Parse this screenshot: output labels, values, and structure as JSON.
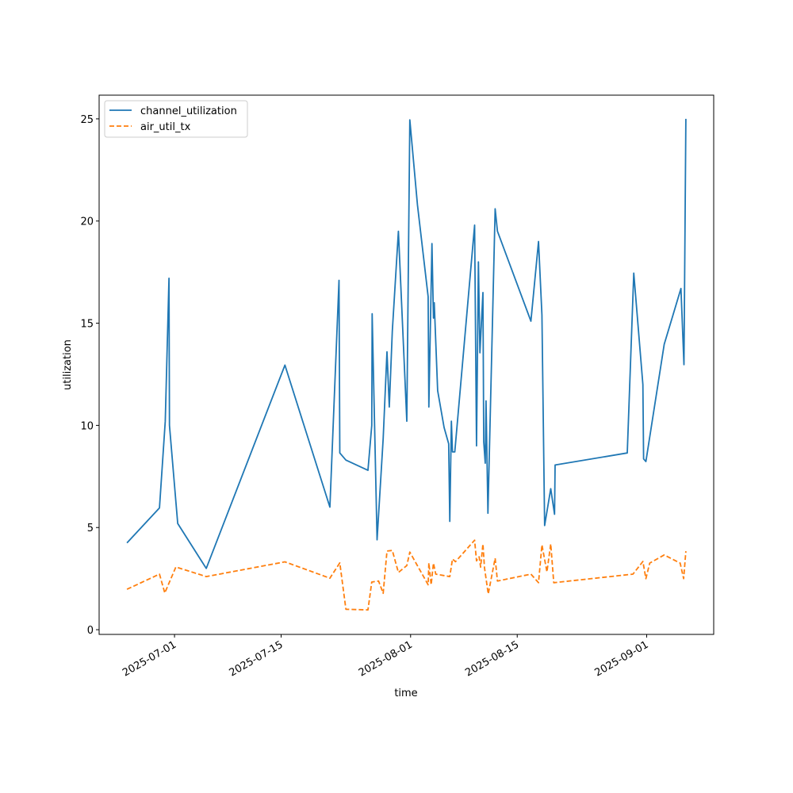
{
  "chart_data": {
    "type": "line",
    "title": "",
    "xlabel": "time",
    "ylabel": "utilization",
    "x_unit": "days since 2025-07-01",
    "x_origin": "2025-07-01",
    "xlim": [
      -9.9,
      70.8
    ],
    "ylim": [
      -0.23,
      26.16
    ],
    "grid": false,
    "legend_position": "top-left",
    "x_ticks": [
      {
        "value": 0,
        "label": "2025-07-01"
      },
      {
        "value": 14,
        "label": "2025-07-15"
      },
      {
        "value": 31,
        "label": "2025-08-01"
      },
      {
        "value": 45,
        "label": "2025-08-15"
      },
      {
        "value": 62,
        "label": "2025-09-01"
      }
    ],
    "y_ticks": [
      {
        "value": 0,
        "label": "0"
      },
      {
        "value": 5,
        "label": "5"
      },
      {
        "value": 10,
        "label": "10"
      },
      {
        "value": 15,
        "label": "15"
      },
      {
        "value": 20,
        "label": "20"
      },
      {
        "value": 25,
        "label": "25"
      }
    ],
    "series": [
      {
        "name": "channel_utilization",
        "color": "#1f77b4",
        "style": "solid",
        "x": [
          -6.25,
          -1.98,
          -1.22,
          -0.73,
          -0.66,
          0.42,
          4.17,
          14.5,
          20.4,
          21.6,
          21.7,
          22.5,
          25.4,
          25.9,
          25.95,
          26.6,
          27.4,
          27.9,
          28.2,
          28.6,
          29.4,
          30.5,
          30.9,
          31.9,
          33.3,
          33.4,
          33.8,
          34.0,
          34.1,
          34.55,
          35.4,
          36.0,
          36.15,
          36.35,
          36.5,
          36.8,
          39.4,
          39.65,
          39.9,
          40.1,
          40.5,
          40.6,
          40.8,
          40.9,
          41.15,
          42.1,
          42.4,
          46.8,
          47.8,
          48.25,
          48.6,
          49.4,
          49.9,
          49.97,
          59.45,
          60.3,
          61.5,
          61.6,
          61.9,
          64.3,
          66.5,
          66.9,
          67.15
        ],
        "values": [
          4.25,
          5.96,
          10.2,
          17.2,
          10.0,
          5.2,
          3.0,
          12.95,
          6.0,
          17.1,
          8.65,
          8.3,
          7.8,
          10.0,
          15.46,
          4.4,
          9.35,
          13.6,
          10.9,
          14.6,
          19.5,
          10.2,
          24.95,
          20.8,
          16.3,
          10.9,
          18.9,
          15.25,
          16.0,
          11.7,
          9.9,
          9.1,
          5.3,
          10.2,
          8.7,
          8.7,
          19.8,
          9.0,
          18.0,
          13.55,
          16.5,
          9.2,
          8.15,
          11.2,
          5.7,
          20.6,
          19.5,
          15.1,
          19.0,
          15.4,
          5.1,
          6.9,
          5.65,
          8.06,
          8.65,
          17.45,
          12.0,
          8.36,
          8.23,
          13.97,
          16.7,
          12.97,
          25.0
        ]
      },
      {
        "name": "air_util_tx",
        "color": "#ff7f0e",
        "style": "dashed",
        "x": [
          -6.25,
          -1.98,
          -1.28,
          0.18,
          4.17,
          14.5,
          20.4,
          21.7,
          22.5,
          25.4,
          25.9,
          26.8,
          27.4,
          27.9,
          28.6,
          29.4,
          30.5,
          30.9,
          33.3,
          33.4,
          33.7,
          34.0,
          34.3,
          36.15,
          36.5,
          36.9,
          39.4,
          39.65,
          40.0,
          40.2,
          40.5,
          40.7,
          41.2,
          42.1,
          42.4,
          46.8,
          47.8,
          48.25,
          48.9,
          49.4,
          49.8,
          60.2,
          61.5,
          61.9,
          62.4,
          64.3,
          66.4,
          66.85,
          67.15
        ],
        "values": [
          1.98,
          2.72,
          1.8,
          3.07,
          2.6,
          3.32,
          2.52,
          3.27,
          1.0,
          0.97,
          2.33,
          2.38,
          1.78,
          3.85,
          3.88,
          2.8,
          3.14,
          3.8,
          2.2,
          3.27,
          2.2,
          3.26,
          2.72,
          2.6,
          3.46,
          3.33,
          4.38,
          3.37,
          3.57,
          3.06,
          4.2,
          3.05,
          1.75,
          3.5,
          2.38,
          2.72,
          2.3,
          4.15,
          2.83,
          4.2,
          2.3,
          2.72,
          3.34,
          2.5,
          3.26,
          3.66,
          3.26,
          2.5,
          3.84
        ]
      }
    ]
  }
}
